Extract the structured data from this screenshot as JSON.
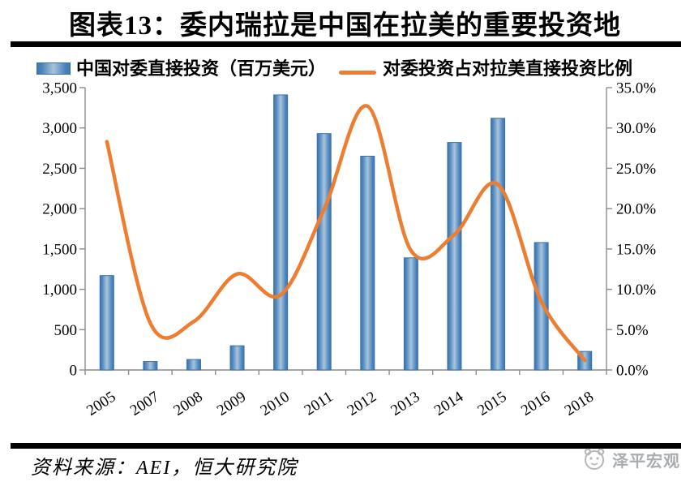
{
  "title": "图表13：委内瑞拉是中国在拉美的重要投资地",
  "legend": {
    "bar_label": "中国对委直接投资（百万美元）",
    "line_label": "对委投资占对拉美直接投资比例"
  },
  "source_note": "资料来源：AEI，恒大研究院",
  "watermark": "泽平宏观",
  "colors": {
    "bar_edge": "#3c78b5",
    "bar_mid": "#4a83bc",
    "bar_center": "#a9c4dc",
    "bar_border": "#3a70ac",
    "line": "#ed7d31",
    "axis": "#8c8c8c",
    "rule": "#000000",
    "text": "#000000",
    "watermark_gray": "#aaadb0"
  },
  "chart_data": {
    "type": "bar",
    "combo": "bar+line, dual axis",
    "title": "图表13：委内瑞拉是中国在拉美的重要投资地",
    "categories": [
      "2005",
      "2007",
      "2008",
      "2009",
      "2010",
      "2011",
      "2012",
      "2013",
      "2014",
      "2015",
      "2016",
      "2018"
    ],
    "series": [
      {
        "name": "中国对委直接投资（百万美元）",
        "type": "bar",
        "axis": "left",
        "values": [
          1170,
          105,
          130,
          300,
          3410,
          2930,
          2650,
          1390,
          2820,
          3120,
          1580,
          230
        ]
      },
      {
        "name": "对委投资占对拉美直接投资比例",
        "type": "line",
        "axis": "right",
        "values_percent": [
          28.3,
          5.8,
          6.0,
          11.9,
          9.3,
          19.9,
          32.7,
          14.8,
          16.8,
          23.0,
          8.5,
          1.2
        ]
      }
    ],
    "left_axis": {
      "min": 0,
      "max": 3500,
      "step": 500,
      "tick_labels": [
        "0",
        "500",
        "1,000",
        "1,500",
        "2,000",
        "2,500",
        "3,000",
        "3,500"
      ]
    },
    "right_axis": {
      "min": 0,
      "max": 35,
      "step": 5,
      "tick_labels": [
        "0.0%",
        "5.0%",
        "10.0%",
        "15.0%",
        "20.0%",
        "25.0%",
        "30.0%",
        "35.0%"
      ]
    },
    "grid": "off",
    "legend_position": "top",
    "x_tick_label_rotation_deg": -33,
    "line_is_smoothed": true
  }
}
